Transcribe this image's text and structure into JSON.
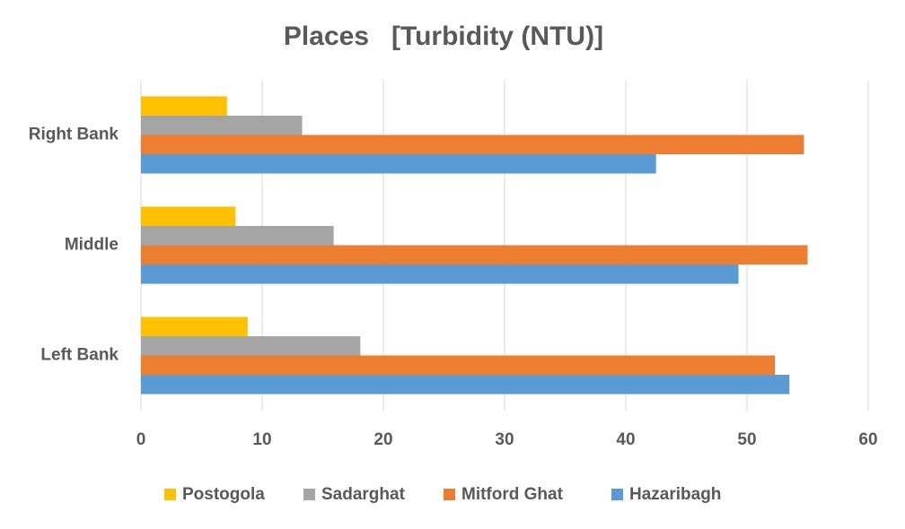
{
  "chart_data": {
    "type": "bar",
    "orientation": "horizontal",
    "title": "Places   [Turbidity (NTU)]",
    "categories": [
      "Left Bank",
      "Middle",
      "Right Bank"
    ],
    "series": [
      {
        "name": "Hazaribagh",
        "color": "#5b9bd5",
        "values": [
          53.5,
          49.3,
          42.5
        ]
      },
      {
        "name": "Mitford Ghat",
        "color": "#ed7d31",
        "values": [
          52.3,
          55.0,
          54.7
        ]
      },
      {
        "name": "Sadarghat",
        "color": "#a5a5a5",
        "values": [
          18.1,
          15.9,
          13.3
        ]
      },
      {
        "name": "Postogola",
        "color": "#ffc000",
        "values": [
          8.8,
          7.8,
          7.1
        ]
      }
    ],
    "xlim": [
      0,
      60
    ],
    "xticks": [
      0,
      10,
      20,
      30,
      40,
      50,
      60
    ],
    "grid": true,
    "legend": "bottom"
  }
}
